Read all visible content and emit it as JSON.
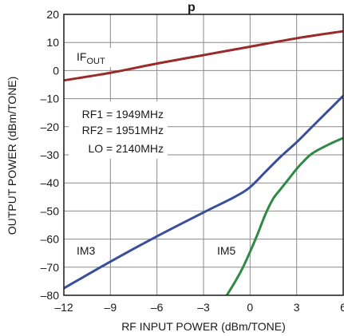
{
  "chart_data": {
    "type": "line",
    "title_fragment": "p",
    "xlabel": "RF INPUT POWER (dBm/TONE)",
    "ylabel": "OUTPUT POWER (dBm/TONE)",
    "xlim": [
      -12,
      6
    ],
    "ylim": [
      -80,
      20
    ],
    "x_ticks": [
      -12,
      -9,
      -6,
      -3,
      0,
      3,
      6
    ],
    "x_tick_labels": [
      "–12",
      "–9",
      "–6",
      "–3",
      "0",
      "3",
      "6"
    ],
    "y_ticks": [
      20,
      10,
      0,
      -10,
      -20,
      -30,
      -40,
      -50,
      -60,
      -70,
      -80
    ],
    "y_tick_labels": [
      "20",
      "10",
      "0",
      "–10",
      "–20",
      "–30",
      "–40",
      "–50",
      "–60",
      "–70",
      "–80"
    ],
    "grid": true,
    "series": [
      {
        "name": "IF_OUT",
        "color": "#9b2a2a",
        "x": [
          -12,
          -9,
          -6,
          -3,
          0,
          3,
          6
        ],
        "y": [
          -3.5,
          -0.8,
          2.5,
          5.5,
          8.5,
          11.5,
          14
        ]
      },
      {
        "name": "IM3",
        "color": "#3a4f9c",
        "x": [
          -12,
          -9,
          -6,
          -3,
          -1,
          0,
          1,
          2,
          3,
          4,
          5,
          6
        ],
        "y": [
          -77.5,
          -68,
          -59,
          -50.5,
          -45,
          -41.5,
          -36,
          -30.5,
          -25.5,
          -20,
          -14.5,
          -9
        ]
      },
      {
        "name": "IM5",
        "color": "#2f8a44",
        "x": [
          -1.5,
          -1,
          -0.5,
          0,
          0.5,
          1,
          1.5,
          2,
          2.5,
          3,
          3.5,
          4,
          5,
          6
        ],
        "y": [
          -80,
          -75.5,
          -70.5,
          -64.5,
          -58,
          -51,
          -45.5,
          -42,
          -38.5,
          -35,
          -32,
          -29.5,
          -26.5,
          -24
        ]
      }
    ],
    "annotations": {
      "if_out_main": "IF",
      "if_out_sub": "OUT",
      "im3": "IM3",
      "im5": "IM5",
      "rf1": "RF1 = 1949MHz",
      "rf2": "RF2 = 1951MHz",
      "lo": "LO = 2140MHz"
    }
  }
}
